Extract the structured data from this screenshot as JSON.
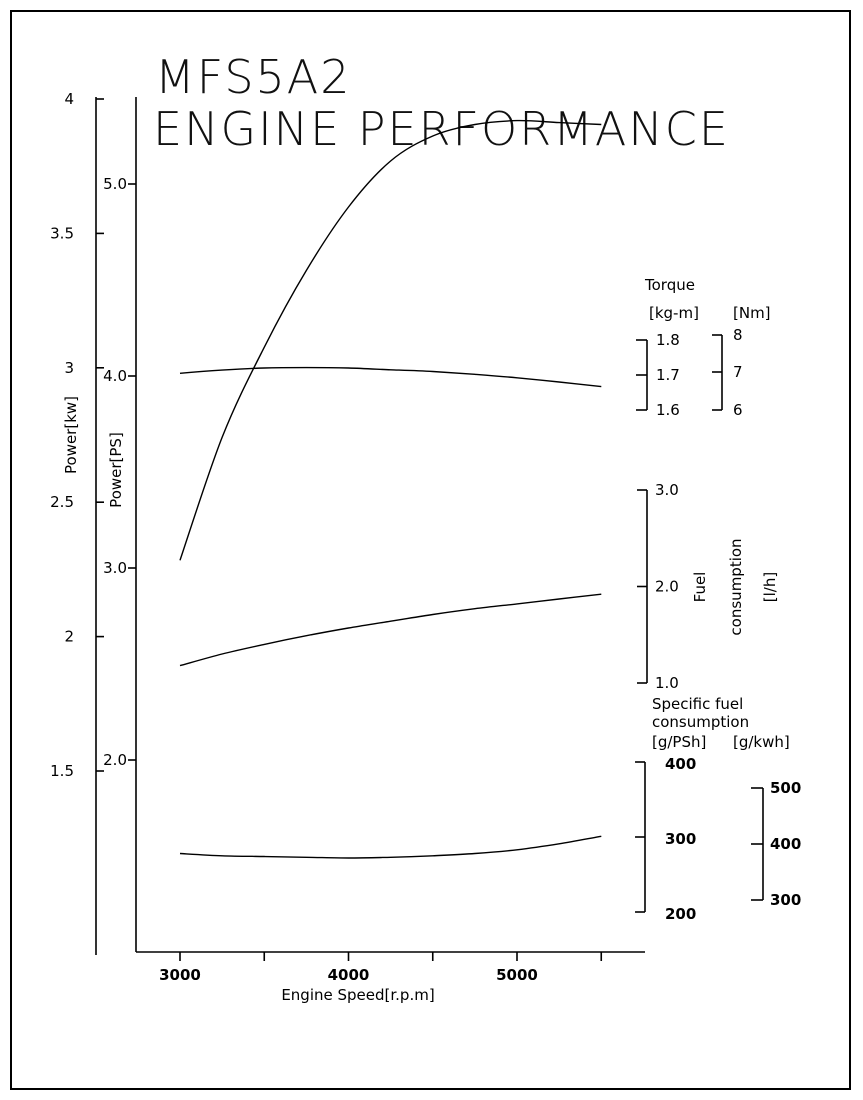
{
  "title_line1": "MFS5A2",
  "title_line2": "ENGINE PERFORMANCE",
  "chart_data": {
    "type": "line",
    "xlabel": "Engine Speed[r.p.m]",
    "x_ticks": [
      "3000",
      "4000",
      "5000"
    ],
    "x": [
      3000,
      3250,
      3500,
      3750,
      4000,
      4250,
      4500,
      4750,
      5000,
      5250,
      5500
    ],
    "axes": {
      "power_kw": {
        "label": "Power[kw]",
        "ticks": [
          "4",
          "3.5",
          "3",
          "2.5",
          "2",
          "1.5"
        ],
        "range": [
          1.5,
          4
        ]
      },
      "power_ps": {
        "label": "Power[PS]",
        "ticks": [
          "5.0",
          "4.0",
          "3.0",
          "2.0"
        ],
        "range": [
          2.0,
          5.0
        ]
      },
      "torque": {
        "title": "Torque",
        "unit_kgm": "[kg-m]",
        "unit_nm": "[Nm]",
        "ticks_kgm": [
          "1.8",
          "1.7",
          "1.6"
        ],
        "ticks_nm": [
          "8",
          "7",
          "6"
        ],
        "range": [
          1.6,
          1.8
        ]
      },
      "fuel": {
        "label_line1": "Fuel",
        "label_line2": "consumption",
        "label_line3": "[l/h]",
        "ticks": [
          "3.0",
          "2.0",
          "1.0"
        ],
        "range": [
          1.0,
          3.0
        ]
      },
      "sfc": {
        "title_line1": "Specific fuel",
        "title_line2": "consumption",
        "unit_psh": "[g/PSh]",
        "unit_kwh": "[g/kwh]",
        "ticks_psh": [
          "400",
          "300",
          "200"
        ],
        "ticks_kwh": [
          "500",
          "400",
          "300"
        ],
        "range": [
          200,
          400
        ]
      }
    },
    "series": [
      {
        "axis": "power_ps",
        "values": [
          3.04,
          3.68,
          4.15,
          4.55,
          4.88,
          5.12,
          5.25,
          5.31,
          5.33,
          5.32,
          5.31
        ]
      },
      {
        "axis": "torque",
        "values": [
          1.705,
          1.714,
          1.72,
          1.721,
          1.72,
          1.715,
          1.71,
          1.702,
          1.692,
          1.68,
          1.667
        ]
      },
      {
        "axis": "fuel",
        "values": [
          1.18,
          1.3,
          1.4,
          1.49,
          1.57,
          1.64,
          1.71,
          1.77,
          1.82,
          1.87,
          1.92
        ]
      },
      {
        "axis": "sfc",
        "values": [
          278,
          275,
          274,
          273,
          272,
          273,
          275,
          278,
          283,
          291,
          301
        ]
      }
    ]
  }
}
